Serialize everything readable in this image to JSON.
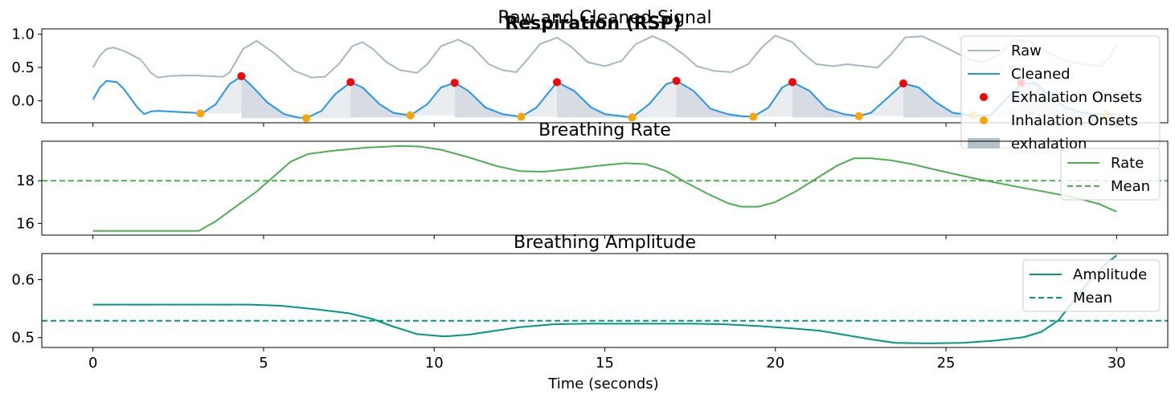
{
  "figure": {
    "suptitle": "Respiration (RSP)",
    "xlabel": "Time (seconds)"
  },
  "chart_data": [
    {
      "type": "line",
      "title": "Raw and Cleaned Signal",
      "xlim": [
        -1.5,
        31.5
      ],
      "ylim": [
        -0.33,
        1.08
      ],
      "x_ticks": [
        0,
        5,
        10,
        15,
        20,
        25,
        30
      ],
      "x_tick_labels": [
        "0",
        "5",
        "10",
        "15",
        "20",
        "25",
        "30"
      ],
      "y_ticks": [
        1.0,
        0.5,
        0.0
      ],
      "y_tick_labels": [
        "1.0",
        "0.5",
        "0.0"
      ],
      "legend_position": "top-right",
      "series": [
        {
          "name": "Raw",
          "color": "#a7b8c0",
          "x": [
            0,
            0.2,
            0.4,
            0.6,
            0.9,
            1.1,
            1.4,
            1.7,
            1.9,
            2.2,
            2.6,
            3.0,
            3.4,
            3.8,
            4.0,
            4.4,
            4.8,
            5.3,
            5.9,
            6.4,
            6.8,
            7.2,
            7.6,
            7.9,
            8.2,
            8.6,
            9.0,
            9.5,
            9.8,
            10.2,
            10.7,
            11.1,
            11.6,
            12.0,
            12.4,
            12.7,
            13.1,
            13.6,
            14.0,
            14.5,
            15.0,
            15.5,
            15.9,
            16.4,
            16.8,
            17.3,
            17.7,
            18.2,
            18.7,
            19.2,
            19.6,
            20.0,
            20.5,
            20.8,
            21.2,
            21.7,
            22.1,
            22.6,
            23.0,
            23.4,
            23.8,
            24.3,
            24.8,
            25.3,
            25.7,
            26.1,
            26.6,
            27.0,
            27.5,
            28.0,
            28.5,
            29.0,
            29.5,
            29.8,
            30.0
          ],
          "y": [
            0.5,
            0.68,
            0.78,
            0.8,
            0.75,
            0.7,
            0.62,
            0.42,
            0.35,
            0.37,
            0.38,
            0.38,
            0.37,
            0.36,
            0.42,
            0.78,
            0.9,
            0.72,
            0.45,
            0.35,
            0.36,
            0.55,
            0.82,
            0.88,
            0.78,
            0.58,
            0.46,
            0.42,
            0.55,
            0.82,
            0.92,
            0.82,
            0.55,
            0.46,
            0.43,
            0.6,
            0.85,
            0.95,
            0.82,
            0.58,
            0.52,
            0.6,
            0.85,
            0.97,
            0.88,
            0.7,
            0.52,
            0.45,
            0.43,
            0.55,
            0.8,
            0.98,
            0.88,
            0.72,
            0.55,
            0.52,
            0.55,
            0.52,
            0.5,
            0.7,
            0.95,
            0.97,
            0.85,
            0.72,
            0.62,
            0.58,
            0.7,
            0.92,
            0.88,
            0.72,
            0.6,
            0.55,
            0.52,
            0.65,
            0.85
          ]
        },
        {
          "name": "Cleaned",
          "color": "#2196f3",
          "x": [
            0,
            0.2,
            0.4,
            0.7,
            0.9,
            1.1,
            1.3,
            1.5,
            1.7,
            1.9,
            2.2,
            2.6,
            3.0,
            3.2,
            3.6,
            4.0,
            4.35,
            4.7,
            5.1,
            5.6,
            6.0,
            6.25,
            6.7,
            7.1,
            7.55,
            7.9,
            8.4,
            8.8,
            9.3,
            9.8,
            10.2,
            10.6,
            11.0,
            11.5,
            12.0,
            12.55,
            13.0,
            13.6,
            14.1,
            14.6,
            15.0,
            15.5,
            15.8,
            16.3,
            16.8,
            17.1,
            17.6,
            18.1,
            18.6,
            19.0,
            19.35,
            19.8,
            20.2,
            20.5,
            21.0,
            21.5,
            22.0,
            22.45,
            22.8,
            23.3,
            23.75,
            24.2,
            24.7,
            25.2,
            25.8,
            26.3,
            26.8,
            27.2,
            27.6,
            28.0,
            28.5,
            29.0,
            29.5,
            29.7,
            30.0
          ],
          "y": [
            0.02,
            0.2,
            0.3,
            0.28,
            0.18,
            0.04,
            -0.1,
            -0.2,
            -0.16,
            -0.15,
            -0.16,
            -0.17,
            -0.18,
            -0.19,
            -0.05,
            0.25,
            0.37,
            0.2,
            -0.02,
            -0.2,
            -0.25,
            -0.26,
            -0.15,
            0.1,
            0.28,
            0.2,
            -0.05,
            -0.18,
            -0.22,
            -0.05,
            0.2,
            0.27,
            0.15,
            -0.1,
            -0.2,
            -0.24,
            -0.1,
            0.28,
            0.15,
            -0.1,
            -0.2,
            -0.23,
            -0.25,
            -0.05,
            0.25,
            0.3,
            0.15,
            -0.12,
            -0.2,
            -0.23,
            -0.24,
            -0.1,
            0.2,
            0.28,
            0.15,
            -0.12,
            -0.2,
            -0.23,
            -0.18,
            0.05,
            0.26,
            0.2,
            -0.02,
            -0.18,
            -0.22,
            -0.22,
            0.05,
            0.25,
            0.27,
            0.1,
            -0.1,
            -0.18,
            -0.2,
            -0.21,
            -0.2
          ]
        },
        {
          "name": "Exhalation Onsets",
          "color": "#ff0000",
          "marker": "dot",
          "x": [
            4.35,
            7.55,
            10.6,
            13.6,
            17.1,
            20.5,
            23.75,
            27.2
          ],
          "y": [
            0.37,
            0.28,
            0.27,
            0.28,
            0.3,
            0.28,
            0.26,
            0.27
          ]
        },
        {
          "name": "Inhalation Onsets",
          "color": "#ffa500",
          "marker": "dot",
          "x": [
            3.15,
            6.25,
            9.3,
            12.55,
            15.8,
            19.35,
            22.45,
            25.8,
            29.7
          ],
          "y": [
            -0.19,
            -0.26,
            -0.22,
            -0.24,
            -0.25,
            -0.24,
            -0.23,
            -0.22,
            -0.21
          ]
        }
      ],
      "shaded_regions": {
        "name": "exhalation",
        "legend_label": "exhalation",
        "color": "#b4c0ca",
        "intervals": [
          [
            4.35,
            6.25
          ],
          [
            7.55,
            9.3
          ],
          [
            10.6,
            12.55
          ],
          [
            13.6,
            15.8
          ],
          [
            17.1,
            19.35
          ],
          [
            20.5,
            22.45
          ],
          [
            23.75,
            25.8
          ],
          [
            27.2,
            29.7
          ]
        ]
      }
    },
    {
      "type": "line",
      "title": "Breathing Rate",
      "xlim": [
        -1.5,
        31.5
      ],
      "ylim": [
        15.45,
        19.85
      ],
      "x_ticks": [
        0,
        5,
        10,
        15,
        20,
        25,
        30
      ],
      "y_ticks": [
        16,
        18
      ],
      "y_tick_labels": [
        "16",
        "18"
      ],
      "legend_position": "top-right",
      "series": [
        {
          "name": "Rate",
          "color": "#4caf50",
          "x": [
            0,
            1,
            2,
            3,
            3.1,
            3.6,
            4.2,
            4.8,
            5.3,
            5.8,
            6.3,
            7.0,
            8.0,
            9.0,
            9.6,
            10.2,
            11.0,
            11.8,
            12.5,
            13.2,
            14.0,
            14.8,
            15.6,
            16.2,
            16.8,
            17.4,
            18.0,
            18.6,
            19.0,
            19.5,
            20.0,
            20.6,
            21.2,
            21.8,
            22.3,
            22.8,
            23.4,
            24.0,
            24.6,
            25.2,
            25.8,
            26.5,
            27.2,
            28.0,
            28.8,
            29.5,
            30.0
          ],
          "y": [
            15.65,
            15.65,
            15.65,
            15.65,
            15.65,
            16.1,
            16.8,
            17.5,
            18.2,
            18.9,
            19.25,
            19.4,
            19.55,
            19.63,
            19.6,
            19.45,
            19.1,
            18.7,
            18.45,
            18.42,
            18.55,
            18.7,
            18.82,
            18.78,
            18.45,
            17.9,
            17.4,
            16.95,
            16.78,
            16.78,
            17.0,
            17.5,
            18.1,
            18.7,
            19.05,
            19.05,
            18.95,
            18.78,
            18.55,
            18.33,
            18.12,
            17.9,
            17.68,
            17.45,
            17.2,
            16.9,
            16.55
          ]
        }
      ],
      "mean_line": {
        "name": "Mean",
        "value": 18.0,
        "color": "#4caf50",
        "style": "dashed"
      }
    },
    {
      "type": "line",
      "title": "Breathing Amplitude",
      "xlim": [
        -1.5,
        31.5
      ],
      "ylim": [
        0.483,
        0.645
      ],
      "x_ticks": [
        0,
        5,
        10,
        15,
        20,
        25,
        30
      ],
      "x_tick_labels": [
        "0",
        "5",
        "10",
        "15",
        "20",
        "25",
        "30"
      ],
      "y_ticks": [
        0.6,
        0.5
      ],
      "y_tick_labels": [
        "0.6",
        "0.5"
      ],
      "xlabel": "Time (seconds)",
      "legend_position": "top-right",
      "series": [
        {
          "name": "Amplitude",
          "color": "#009688",
          "x": [
            0,
            1,
            2,
            3,
            4,
            4.6,
            5.5,
            6.5,
            7.5,
            8.2,
            8.8,
            9.5,
            10.3,
            11.0,
            11.8,
            12.5,
            13.5,
            14.5,
            15.5,
            16.5,
            17.5,
            18.5,
            19.5,
            20.5,
            21.3,
            22.0,
            22.8,
            23.5,
            24.5,
            25.5,
            26.5,
            27.3,
            27.8,
            28.3,
            28.8,
            29.3,
            29.7,
            30.0
          ],
          "y": [
            0.557,
            0.557,
            0.557,
            0.557,
            0.557,
            0.557,
            0.555,
            0.549,
            0.542,
            0.532,
            0.519,
            0.506,
            0.502,
            0.505,
            0.512,
            0.518,
            0.523,
            0.524,
            0.524,
            0.524,
            0.524,
            0.523,
            0.52,
            0.516,
            0.512,
            0.505,
            0.497,
            0.491,
            0.49,
            0.491,
            0.495,
            0.501,
            0.51,
            0.53,
            0.568,
            0.605,
            0.628,
            0.642
          ]
        }
      ],
      "mean_line": {
        "name": "Mean",
        "value": 0.529,
        "color": "#009688",
        "style": "dashed"
      }
    }
  ]
}
